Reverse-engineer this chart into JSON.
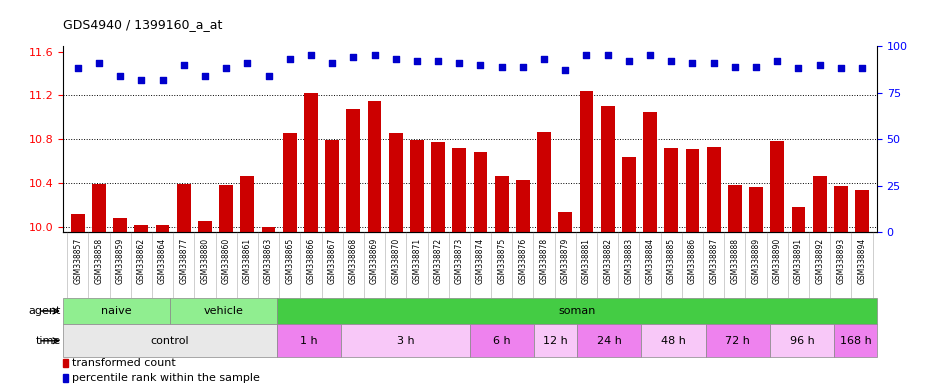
{
  "title": "GDS4940 / 1399160_a_at",
  "xlabels": [
    "GSM338857",
    "GSM338858",
    "GSM338859",
    "GSM338862",
    "GSM338864",
    "GSM338877",
    "GSM338880",
    "GSM338860",
    "GSM338861",
    "GSM338863",
    "GSM338865",
    "GSM338866",
    "GSM338867",
    "GSM338868",
    "GSM338869",
    "GSM338870",
    "GSM338871",
    "GSM338872",
    "GSM338873",
    "GSM338874",
    "GSM338875",
    "GSM338876",
    "GSM338878",
    "GSM338879",
    "GSM338881",
    "GSM338882",
    "GSM338883",
    "GSM338884",
    "GSM338885",
    "GSM338886",
    "GSM338887",
    "GSM338888",
    "GSM338889",
    "GSM338890",
    "GSM338891",
    "GSM338892",
    "GSM338893",
    "GSM338894"
  ],
  "bar_values": [
    10.12,
    10.39,
    10.08,
    10.02,
    10.02,
    10.39,
    10.05,
    10.38,
    10.46,
    10.0,
    10.86,
    11.22,
    10.79,
    11.08,
    11.15,
    10.86,
    10.79,
    10.77,
    10.72,
    10.68,
    10.46,
    10.43,
    10.87,
    10.14,
    11.24,
    11.1,
    10.64,
    11.05,
    10.72,
    10.71,
    10.73,
    10.38,
    10.36,
    10.78,
    10.18,
    10.46,
    10.37,
    10.34
  ],
  "percentile_values": [
    88,
    91,
    84,
    82,
    82,
    90,
    84,
    88,
    91,
    84,
    93,
    95,
    91,
    94,
    95,
    93,
    92,
    92,
    91,
    90,
    89,
    89,
    93,
    87,
    95,
    95,
    92,
    95,
    92,
    91,
    91,
    89,
    89,
    92,
    88,
    90,
    88,
    88
  ],
  "bar_color": "#cc0000",
  "dot_color": "#0000cc",
  "ylim_left": [
    9.95,
    11.65
  ],
  "ylim_right": [
    0,
    100
  ],
  "yticks_left": [
    10.0,
    10.4,
    10.8,
    11.2,
    11.6
  ],
  "yticks_right": [
    0,
    25,
    50,
    75,
    100
  ],
  "agent_groups": [
    {
      "label": "naive",
      "start": 0,
      "end": 5,
      "color": "#90ee90"
    },
    {
      "label": "vehicle",
      "start": 5,
      "end": 10,
      "color": "#90ee90"
    },
    {
      "label": "soman",
      "start": 10,
      "end": 38,
      "color": "#44cc44"
    }
  ],
  "time_groups": [
    {
      "label": "control",
      "start": 0,
      "end": 10,
      "color": "#e8e8e8"
    },
    {
      "label": "1 h",
      "start": 10,
      "end": 13,
      "color": "#ee82ee"
    },
    {
      "label": "3 h",
      "start": 13,
      "end": 19,
      "color": "#f8c8f8"
    },
    {
      "label": "6 h",
      "start": 19,
      "end": 22,
      "color": "#ee82ee"
    },
    {
      "label": "12 h",
      "start": 22,
      "end": 24,
      "color": "#f8c8f8"
    },
    {
      "label": "24 h",
      "start": 24,
      "end": 27,
      "color": "#ee82ee"
    },
    {
      "label": "48 h",
      "start": 27,
      "end": 30,
      "color": "#f8c8f8"
    },
    {
      "label": "72 h",
      "start": 30,
      "end": 33,
      "color": "#ee82ee"
    },
    {
      "label": "96 h",
      "start": 33,
      "end": 36,
      "color": "#f8c8f8"
    },
    {
      "label": "168 h",
      "start": 36,
      "end": 38,
      "color": "#ee82ee"
    }
  ],
  "legend_bar_color": "#cc0000",
  "legend_dot_color": "#0000cc",
  "legend_bar_label": "transformed count",
  "legend_dot_label": "percentile rank within the sample"
}
